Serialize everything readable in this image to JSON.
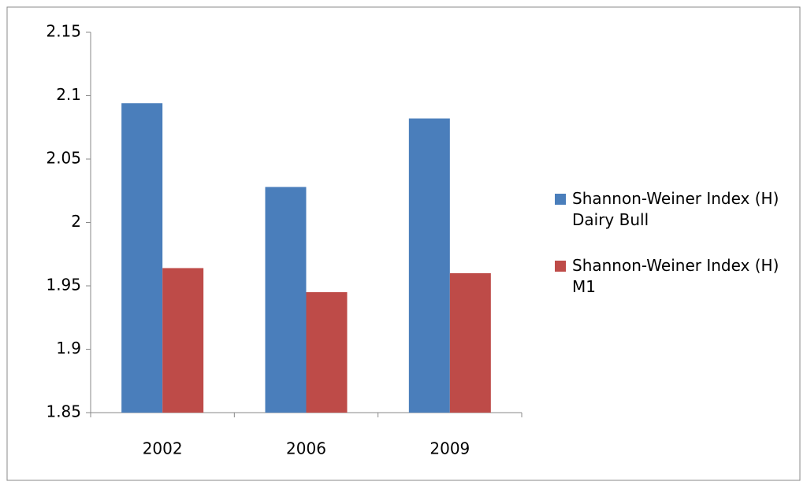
{
  "chart_data": {
    "type": "bar",
    "categories": [
      "2002",
      "2006",
      "2009"
    ],
    "series": [
      {
        "name": "Shannon-Weiner Index (H) Dairy Bull",
        "color": "#4a7ebb",
        "values": [
          2.094,
          2.028,
          2.082
        ]
      },
      {
        "name": "Shannon-Weiner Index (H) M1",
        "color": "#be4b48",
        "values": [
          1.964,
          1.945,
          1.96
        ]
      }
    ],
    "ylim": [
      1.85,
      2.15
    ],
    "yticks": [
      1.85,
      1.9,
      1.95,
      2,
      2.05,
      2.1,
      2.15
    ],
    "grid": false,
    "legend": "right"
  }
}
